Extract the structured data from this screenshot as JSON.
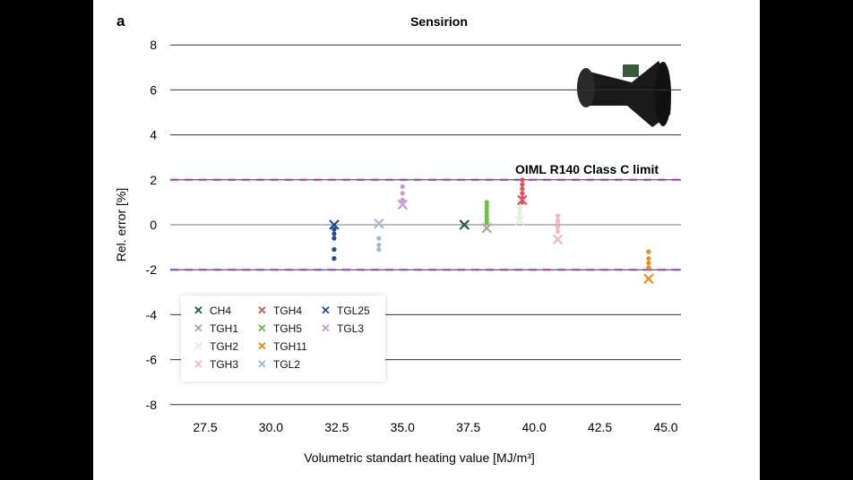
{
  "chart_data": {
    "type": "scatter",
    "panel_label": "a",
    "title": "Sensirion",
    "xlabel": "Volumetric standart heating value [MJ/m³]",
    "ylabel": "Rel. error [%]",
    "xlim": [
      26.2,
      46.2
    ],
    "ylim": [
      -8,
      8
    ],
    "xticks": [
      "27.5",
      "30.0",
      "32.5",
      "35.0",
      "37.5",
      "40.0",
      "42.5",
      "45.0"
    ],
    "yticks": [
      "8",
      "6",
      "4",
      "2",
      "0",
      "-2",
      "-4",
      "-6",
      "-8"
    ],
    "grid": "horizontal",
    "limit_lines": {
      "label": "OIML R140 Class C limit",
      "values": [
        2,
        -2
      ],
      "color": "#8b3fb0"
    },
    "legend_position": "bottom-left",
    "series": [
      {
        "name": "CH4",
        "color": "#1f5c45",
        "x": 37.35,
        "cross": 0,
        "dots": []
      },
      {
        "name": "TGH1",
        "color": "#a8a8a8",
        "x": 38.2,
        "cross": -0.15,
        "dots": []
      },
      {
        "name": "TGH2",
        "color": "#dff0d8",
        "x": 39.45,
        "cross": 0.2,
        "dots": [
          0.3,
          0.5,
          0.7,
          0.9,
          1.0
        ]
      },
      {
        "name": "TGH3",
        "color": "#f2b8bf",
        "x": 40.9,
        "cross": -0.65,
        "dots": [
          -0.3,
          -0.1,
          0.1,
          0.2,
          0.4
        ]
      },
      {
        "name": "TGH4",
        "color": "#e0505f",
        "x": 39.55,
        "cross": 1.1,
        "dots": [
          1.0,
          1.2,
          1.4,
          1.6,
          1.8,
          2.0
        ]
      },
      {
        "name": "TGH5",
        "color": "#6cc04a",
        "x": 38.2,
        "cross": null,
        "dots": [
          0.1,
          0.25,
          0.4,
          0.55,
          0.7,
          0.85,
          1.0
        ]
      },
      {
        "name": "TGH11",
        "color": "#f08a1c",
        "x": 44.35,
        "cross": -2.4,
        "dots": [
          -1.2,
          -1.5,
          -1.7,
          -1.9
        ]
      },
      {
        "name": "TGL2",
        "color": "#9fb7db",
        "x": 34.1,
        "cross": 0.05,
        "dots": [
          -0.6,
          -0.9,
          -1.1
        ]
      },
      {
        "name": "TGL25",
        "color": "#1d4e94",
        "x": 32.4,
        "cross": 0,
        "dots": [
          -0.2,
          -0.4,
          -0.6,
          -1.1,
          -1.5
        ]
      },
      {
        "name": "TGL3",
        "color": "#c79ad8",
        "x": 35.0,
        "cross": 0.9,
        "dots": [
          1.1,
          1.4,
          1.7
        ]
      }
    ]
  }
}
